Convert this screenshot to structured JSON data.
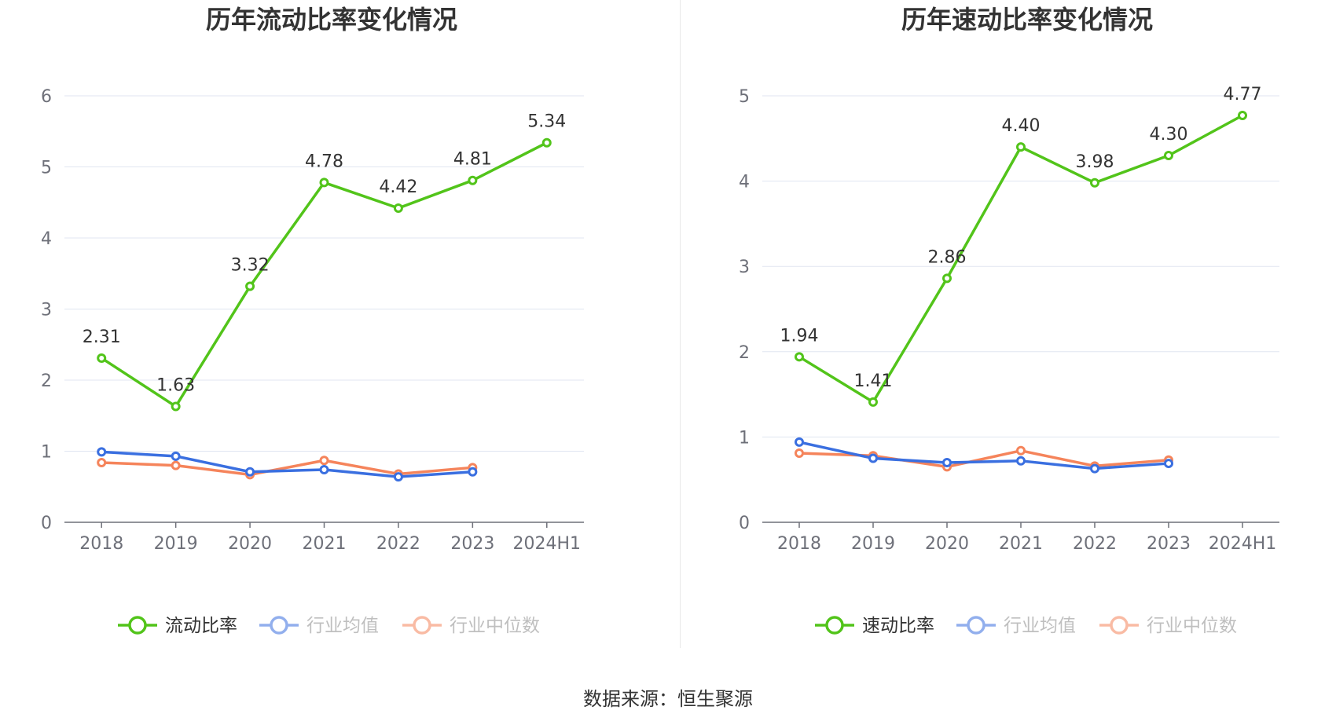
{
  "source_label": "数据来源：恒生聚源",
  "chart_data": [
    {
      "type": "line",
      "title": "历年流动比率变化情况",
      "categories": [
        "2018",
        "2019",
        "2020",
        "2021",
        "2022",
        "2023",
        "2024H1"
      ],
      "ylim": [
        0,
        6
      ],
      "yticks": [
        0,
        1,
        2,
        3,
        4,
        5,
        6
      ],
      "grid": true,
      "legend_position": "bottom-center",
      "series": [
        {
          "name": "流动比率",
          "color": "#52c41a",
          "show_labels": true,
          "values": [
            2.31,
            1.63,
            3.32,
            4.78,
            4.42,
            4.81,
            5.34
          ],
          "labels": [
            "2.31",
            "1.63",
            "3.32",
            "4.78",
            "4.42",
            "4.81",
            "5.34"
          ]
        },
        {
          "name": "行业均值",
          "color": "#3a6fe0",
          "show_labels": false,
          "values": [
            0.99,
            0.93,
            0.71,
            0.74,
            0.64,
            0.71,
            null
          ]
        },
        {
          "name": "行业中位数",
          "color": "#f5845b",
          "show_labels": false,
          "values": [
            0.84,
            0.8,
            0.67,
            0.87,
            0.68,
            0.77,
            null
          ]
        }
      ]
    },
    {
      "type": "line",
      "title": "历年速动比率变化情况",
      "categories": [
        "2018",
        "2019",
        "2020",
        "2021",
        "2022",
        "2023",
        "2024H1"
      ],
      "ylim": [
        0,
        5
      ],
      "yticks": [
        0,
        1,
        2,
        3,
        4,
        5
      ],
      "grid": true,
      "legend_position": "bottom-center",
      "series": [
        {
          "name": "速动比率",
          "color": "#52c41a",
          "show_labels": true,
          "values": [
            1.94,
            1.41,
            2.86,
            4.4,
            3.98,
            4.3,
            4.77
          ],
          "labels": [
            "1.94",
            "1.41",
            "2.86",
            "4.40",
            "3.98",
            "4.30",
            "4.77"
          ]
        },
        {
          "name": "行业均值",
          "color": "#3a6fe0",
          "show_labels": false,
          "values": [
            0.94,
            0.75,
            0.7,
            0.72,
            0.63,
            0.69,
            null
          ]
        },
        {
          "name": "行业中位数",
          "color": "#f5845b",
          "show_labels": false,
          "values": [
            0.81,
            0.78,
            0.65,
            0.84,
            0.66,
            0.73,
            null
          ]
        }
      ]
    }
  ]
}
